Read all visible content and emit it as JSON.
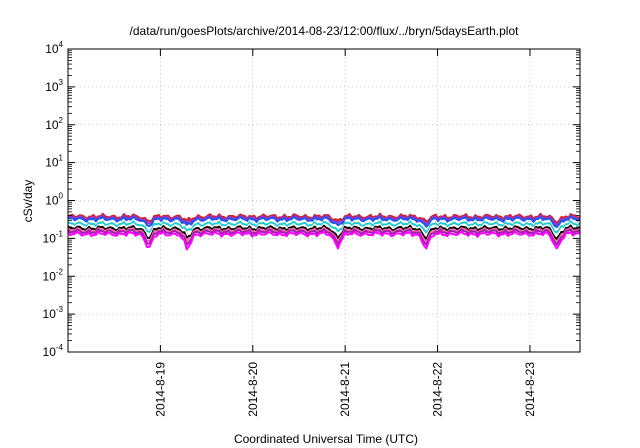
{
  "chart_data": {
    "type": "line",
    "title": "/data/run/goesPlots/archive/2014-08-23/12:00/flux/../bryn/5daysEarth.plot",
    "xlabel": "Coordinated Universal Time (UTC)",
    "ylabel": "cSv/day",
    "x_ticks": [
      "2014-8-19",
      "2014-8-20",
      "2014-8-21",
      "2014-8-22",
      "2014-8-23"
    ],
    "xlim": [
      "2014-08-18T00:00",
      "2014-08-23T13:00"
    ],
    "y_scale": "log",
    "ylim": [
      0.0001,
      10000
    ],
    "y_ticks": [
      {
        "base": "10",
        "exp": "4"
      },
      {
        "base": "10",
        "exp": "3"
      },
      {
        "base": "10",
        "exp": "2"
      },
      {
        "base": "10",
        "exp": "1"
      },
      {
        "base": "10",
        "exp": "0"
      },
      {
        "base": "10",
        "exp": "-1"
      },
      {
        "base": "10",
        "exp": "-2"
      },
      {
        "base": "10",
        "exp": "-3"
      },
      {
        "base": "10",
        "exp": "-4"
      }
    ],
    "grid": true,
    "legend": "none",
    "series": [
      {
        "color": "#d62020",
        "level": 0.38
      },
      {
        "color": "#9933cc",
        "level": 0.35
      },
      {
        "color": "#2255ee",
        "level": 0.32
      },
      {
        "color": "#22cccc",
        "level": 0.24
      },
      {
        "color": "#ffffff",
        "level": 0.21
      },
      {
        "color": "#000000",
        "level": 0.185
      },
      {
        "color": "#ff66aa",
        "level": 0.165
      },
      {
        "color": "#9922aa",
        "level": 0.15
      },
      {
        "color": "#ff00ff",
        "level": 0.13
      }
    ],
    "dips": [
      {
        "x": "2014-08-18T21:00",
        "factor": 0.4
      },
      {
        "x": "2014-08-19T07:00",
        "factor": 0.35
      },
      {
        "x": "2014-08-20T22:00",
        "factor": 0.45
      },
      {
        "x": "2014-08-21T21:00",
        "factor": 0.4
      },
      {
        "x": "2014-08-23T07:00",
        "factor": 0.38
      }
    ]
  }
}
